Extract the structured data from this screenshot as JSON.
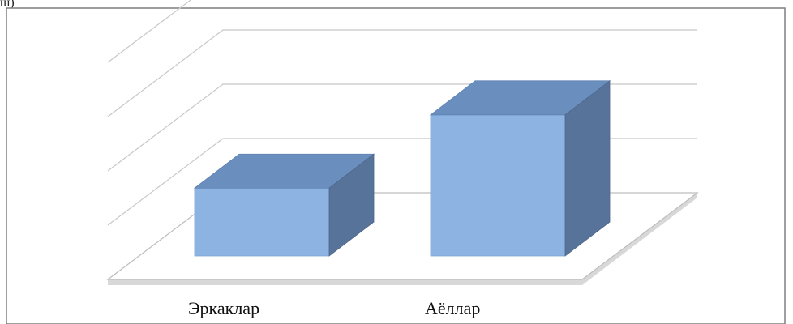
{
  "chart_data": {
    "type": "bar",
    "subtype": "3d-column",
    "categories": [
      "Эркаклар",
      "Аёллар"
    ],
    "values": [
      1.25,
      2.6
    ],
    "ylim": [
      0,
      4
    ],
    "grid": true,
    "legend": "none",
    "title": "",
    "xlabel": "",
    "ylabel": "",
    "colors": {
      "front": "#8db3e2",
      "top": "#6a8fbf",
      "side": "#58739a",
      "grid": "#c8c8c8",
      "frame": "#7f7f7f"
    }
  },
  "header_fragment": "ш)"
}
